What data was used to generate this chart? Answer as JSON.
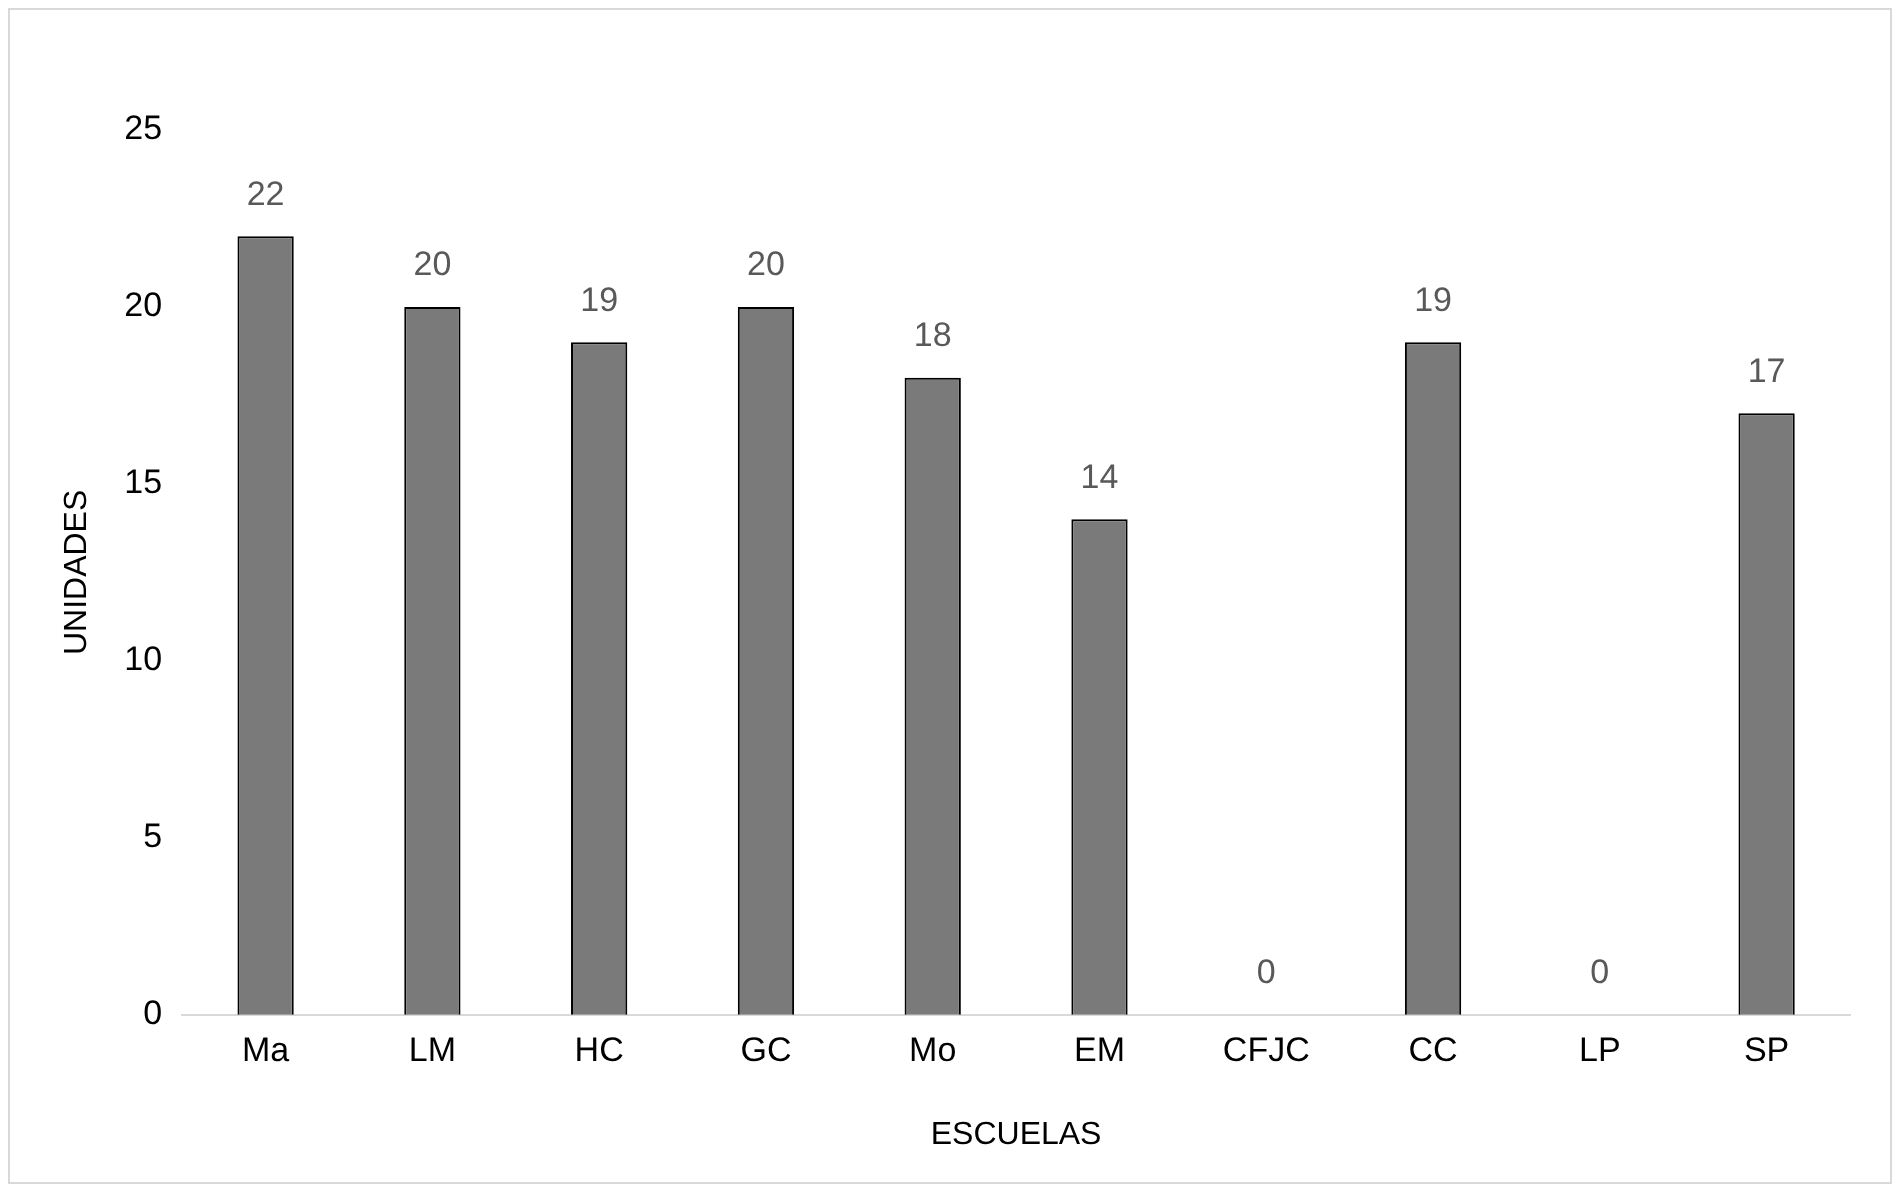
{
  "chart_data": {
    "type": "bar",
    "xlabel": "ESCUELAS",
    "ylabel": "UNIDADES",
    "categories": [
      "Ma",
      "LM",
      "HC",
      "GC",
      "Mo",
      "EM",
      "CFJC",
      "CC",
      "LP",
      "SP"
    ],
    "values": [
      22,
      20,
      19,
      20,
      18,
      14,
      0,
      19,
      0,
      17
    ],
    "color": "#7a7a7a",
    "ylim": [
      0,
      25
    ],
    "yticks": [
      0,
      5,
      10,
      15,
      20,
      25
    ],
    "grid": false,
    "data_labels": true,
    "legend": false
  }
}
